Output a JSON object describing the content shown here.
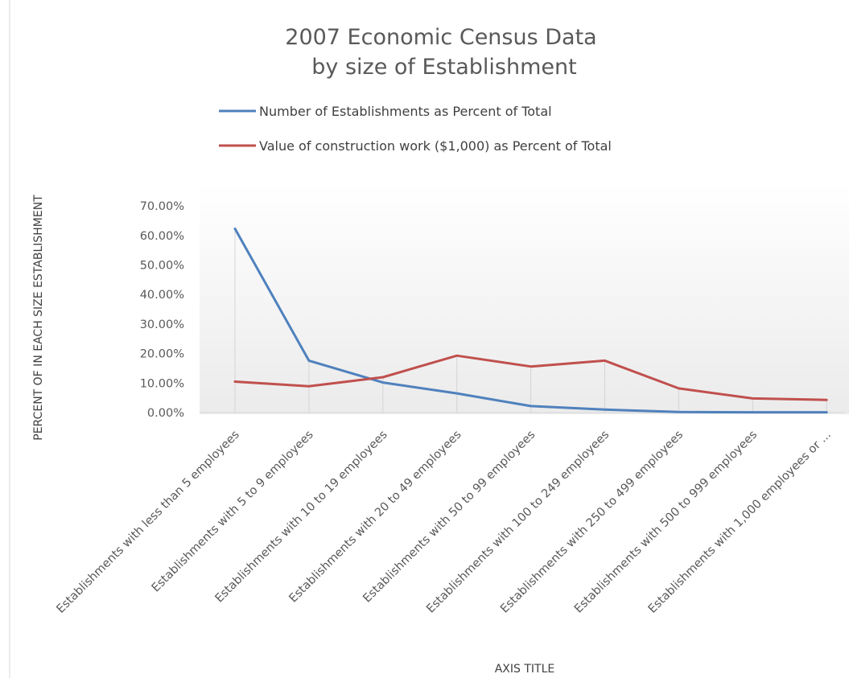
{
  "chart_data": {
    "type": "line",
    "title": "2007 Economic  Census  Data",
    "subtitle": "by size  of  Establishment",
    "xlabel": "AXIS TITLE",
    "ylabel": "PERCENT OF IN EACH SIZE ESTABLISHMENT",
    "categories": [
      "Establishments  with less  than 5 employees",
      "Establishments  with 5 to 9 employees",
      "Establishments  with 10 to 19 employees",
      "Establishments  with 20 to 49 employees",
      "Establishments  with 50 to 99 employees",
      "Establishments  with 100 to 249 employees",
      "Establishments  with 250 to 499 employees",
      "Establishments  with 500 to 999 employees",
      "Establishments  with 1,000 employees  or ..."
    ],
    "series": [
      {
        "name": "Number of Establishments as Percent of Total",
        "color": "#4F81BD",
        "values": [
          62.3,
          17.6,
          10.2,
          6.5,
          2.2,
          1.0,
          0.2,
          0.1,
          0.1
        ]
      },
      {
        "name": "Value of construction work ($1,000) as Percent of Total",
        "color": "#C0504D",
        "values": [
          10.5,
          8.9,
          12.0,
          19.3,
          15.6,
          17.6,
          8.2,
          4.8,
          4.3
        ]
      }
    ],
    "ylim": [
      0,
      70
    ],
    "yticks": [
      "0.00%",
      "10.00%",
      "20.00%",
      "30.00%",
      "40.00%",
      "50.00%",
      "60.00%",
      "70.00%"
    ],
    "grid": false,
    "drop_lines": true,
    "legend_position": "top"
  }
}
